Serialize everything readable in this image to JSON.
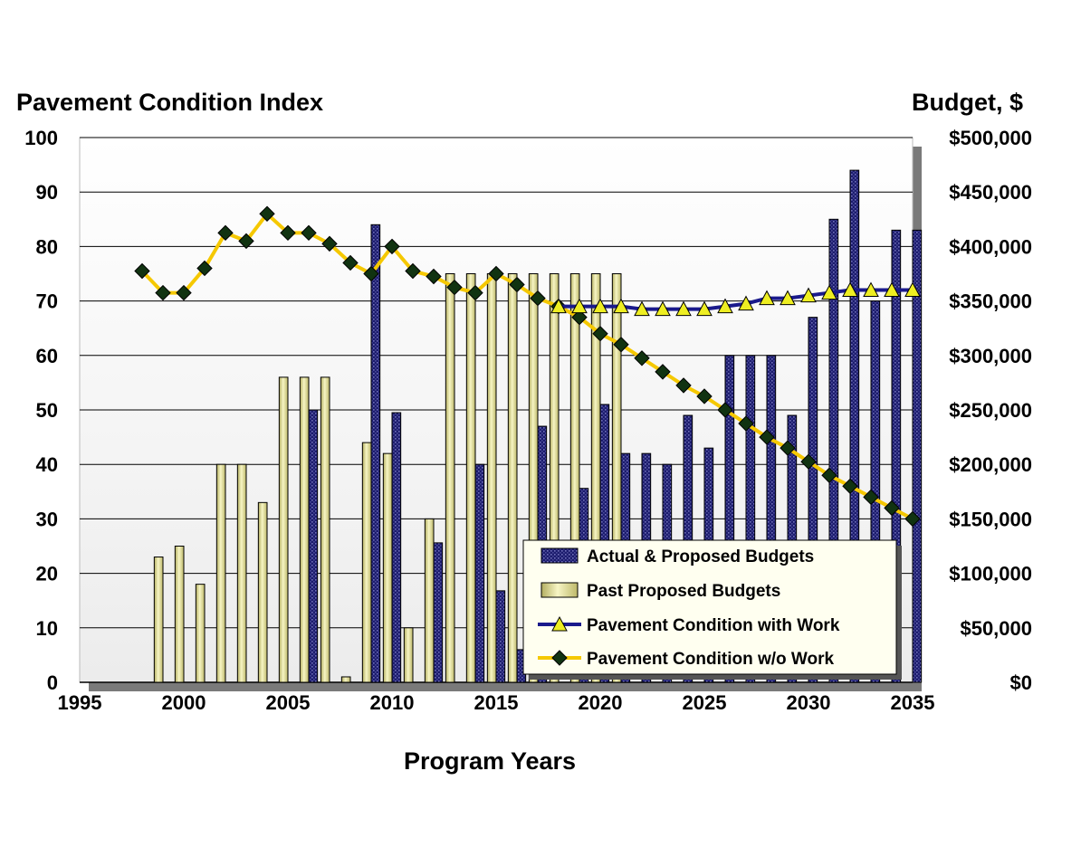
{
  "chart_data": {
    "type": "bar",
    "left_axis_title": "Pavement Condition Index",
    "right_axis_title": "Budget, $",
    "xlabel": "Program Years",
    "x_ticks": [
      "1995",
      "2000",
      "2005",
      "2010",
      "2015",
      "2020",
      "2025",
      "2030",
      "2035"
    ],
    "left_ticks": [
      "0",
      "10",
      "20",
      "30",
      "40",
      "50",
      "60",
      "70",
      "80",
      "90",
      "100"
    ],
    "right_ticks": [
      "$0",
      "$50,000",
      "$100,000",
      "$150,000",
      "$200,000",
      "$250,000",
      "$300,000",
      "$350,000",
      "$400,000",
      "$450,000",
      "$500,000"
    ],
    "xlim": [
      1995,
      2035
    ],
    "ylim_left": [
      0,
      100
    ],
    "ylim_right": [
      0,
      500000
    ],
    "grid": true,
    "legend_position": "bottom-right",
    "series": [
      {
        "name": "Actual & Proposed Budgets",
        "kind": "bar",
        "axis": "right",
        "color": "#1c1c6e",
        "points": [
          [
            2006,
            250000
          ],
          [
            2009,
            420000
          ],
          [
            2010,
            247500
          ],
          [
            2012,
            128000
          ],
          [
            2014,
            200000
          ],
          [
            2015,
            84000
          ],
          [
            2016,
            30000
          ],
          [
            2017,
            235000
          ],
          [
            2019,
            178000
          ],
          [
            2020,
            255000
          ],
          [
            2021,
            210000
          ],
          [
            2022,
            210000
          ],
          [
            2023,
            200000
          ],
          [
            2024,
            245000
          ],
          [
            2025,
            215000
          ],
          [
            2026,
            300000
          ],
          [
            2027,
            300000
          ],
          [
            2028,
            300000
          ],
          [
            2029,
            245000
          ],
          [
            2030,
            335000
          ],
          [
            2031,
            425000
          ],
          [
            2032,
            470000
          ],
          [
            2033,
            350000
          ],
          [
            2034,
            415000
          ],
          [
            2035,
            415000
          ]
        ]
      },
      {
        "name": "Past Proposed Budgets",
        "kind": "bar",
        "axis": "right",
        "color": "#e8e6a0",
        "points": [
          [
            1999,
            115000
          ],
          [
            2000,
            125000
          ],
          [
            2001,
            90000
          ],
          [
            2002,
            200000
          ],
          [
            2003,
            200000
          ],
          [
            2004,
            165000
          ],
          [
            2005,
            280000
          ],
          [
            2006,
            280000
          ],
          [
            2007,
            280000
          ],
          [
            2008,
            5000
          ],
          [
            2009,
            220000
          ],
          [
            2010,
            210000
          ],
          [
            2011,
            50000
          ],
          [
            2012,
            150000
          ],
          [
            2013,
            375000
          ],
          [
            2014,
            375000
          ],
          [
            2015,
            375000
          ],
          [
            2016,
            375000
          ],
          [
            2017,
            375000
          ],
          [
            2018,
            375000
          ],
          [
            2019,
            375000
          ],
          [
            2020,
            375000
          ],
          [
            2021,
            375000
          ]
        ]
      },
      {
        "name": "Pavement Condition with Work",
        "kind": "line",
        "axis": "left",
        "color": "#1a1a8c",
        "marker_color": "#eeee22",
        "points": [
          [
            2018,
            69
          ],
          [
            2019,
            69
          ],
          [
            2020,
            69
          ],
          [
            2021,
            69
          ],
          [
            2022,
            68.5
          ],
          [
            2023,
            68.5
          ],
          [
            2024,
            68.5
          ],
          [
            2025,
            68.5
          ],
          [
            2026,
            69
          ],
          [
            2027,
            69.5
          ],
          [
            2028,
            70.5
          ],
          [
            2029,
            70.5
          ],
          [
            2030,
            71
          ],
          [
            2031,
            71.5
          ],
          [
            2032,
            72
          ],
          [
            2033,
            72
          ],
          [
            2034,
            72
          ],
          [
            2035,
            72
          ]
        ]
      },
      {
        "name": "Pavement Condition w/o Work",
        "kind": "line",
        "axis": "left",
        "color": "#f5c800",
        "marker_color": "#113311",
        "points": [
          [
            1998,
            75.5
          ],
          [
            1999,
            71.5
          ],
          [
            2000,
            71.5
          ],
          [
            2001,
            76
          ],
          [
            2002,
            82.5
          ],
          [
            2003,
            81
          ],
          [
            2004,
            86
          ],
          [
            2005,
            82.5
          ],
          [
            2006,
            82.5
          ],
          [
            2007,
            80.5
          ],
          [
            2008,
            77
          ],
          [
            2009,
            75
          ],
          [
            2010,
            80
          ],
          [
            2011,
            75.5
          ],
          [
            2012,
            74.5
          ],
          [
            2013,
            72.5
          ],
          [
            2014,
            71.5
          ],
          [
            2015,
            75
          ],
          [
            2016,
            73
          ],
          [
            2017,
            70.5
          ],
          [
            2018,
            69
          ],
          [
            2019,
            67
          ],
          [
            2020,
            64
          ],
          [
            2021,
            62
          ],
          [
            2022,
            59.5
          ],
          [
            2023,
            57
          ],
          [
            2024,
            54.5
          ],
          [
            2025,
            52.5
          ],
          [
            2026,
            50
          ],
          [
            2027,
            47.5
          ],
          [
            2028,
            45
          ],
          [
            2029,
            43
          ],
          [
            2030,
            40.5
          ],
          [
            2031,
            38
          ],
          [
            2032,
            36
          ],
          [
            2033,
            34
          ],
          [
            2034,
            32
          ],
          [
            2035,
            30
          ]
        ]
      }
    ]
  }
}
